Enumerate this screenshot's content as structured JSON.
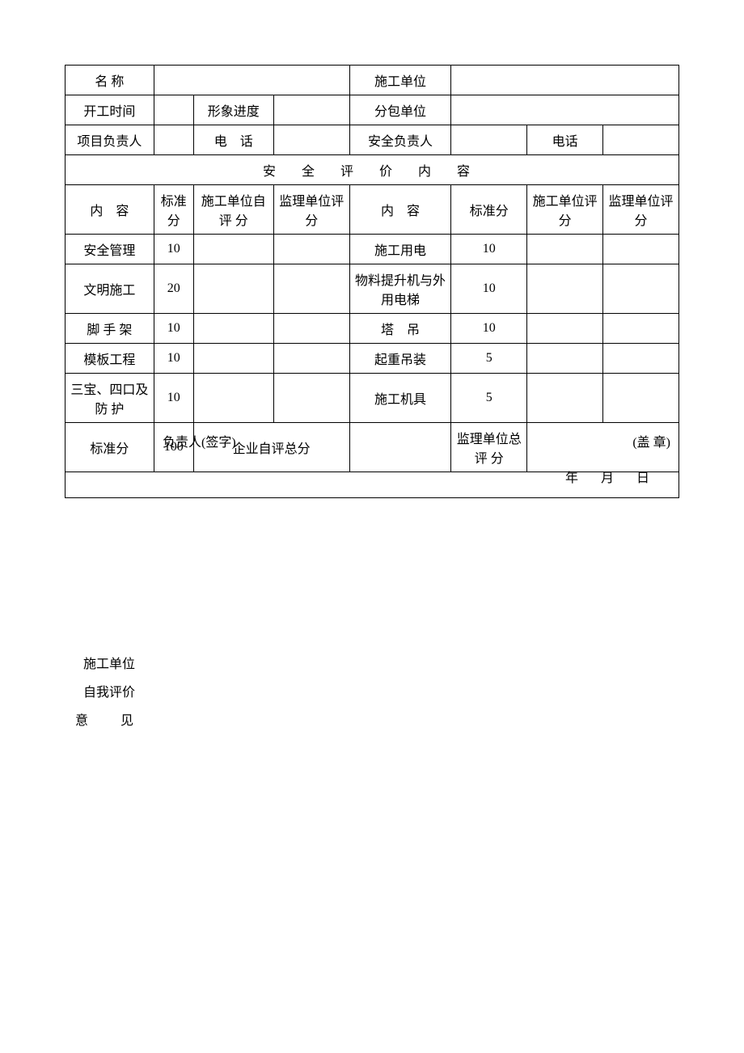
{
  "header": {
    "name_label": "名 称",
    "construction_unit_label": "施工单位",
    "start_time_label": "开工时间",
    "image_progress_label": "形象进度",
    "subcontract_unit_label": "分包单位",
    "project_leader_label": "项目负责人",
    "phone1_label": "电　话",
    "safety_leader_label": "安全负责人",
    "phone2_label": "电话"
  },
  "section_title": "安 全 评 价 内 容",
  "cols": {
    "content_label": "内　容",
    "standard_score_label": "标准分",
    "self_eval_label": "施工单位自 评 分",
    "supervisor_eval_label": "监理单位评　分",
    "content_label2": "内　容",
    "standard_score_label2": "标准分",
    "unit_eval_label": "施工单位评　分",
    "supervisor_eval_label2": "监理单位评　分"
  },
  "rows_left": [
    {
      "name": "安全管理",
      "score": "10"
    },
    {
      "name": "文明施工",
      "score": "20"
    },
    {
      "name": "脚 手 架",
      "score": "10"
    },
    {
      "name": "模板工程",
      "score": "10"
    },
    {
      "name": "三宝、四口及 防 护",
      "score": "10"
    }
  ],
  "rows_right": [
    {
      "name": "施工用电",
      "score": "10"
    },
    {
      "name": "物料提升机与外用电梯",
      "score": "10"
    },
    {
      "name": "塔　吊",
      "score": "10"
    },
    {
      "name": "起重吊装",
      "score": "5"
    },
    {
      "name": "施工机具",
      "score": "5"
    }
  ],
  "summary": {
    "std_label": "标准分",
    "std_total": "100",
    "company_self_total_label": "企业自评总分",
    "supervisor_total_label": "监理单位总 评 分"
  },
  "comment": {
    "line1": "施工单位",
    "line2": "自我评价",
    "line3": "意　见",
    "signer_label": "负责人(签字)",
    "stamp_label": "(盖 章)",
    "date_label": "年　月　日"
  }
}
